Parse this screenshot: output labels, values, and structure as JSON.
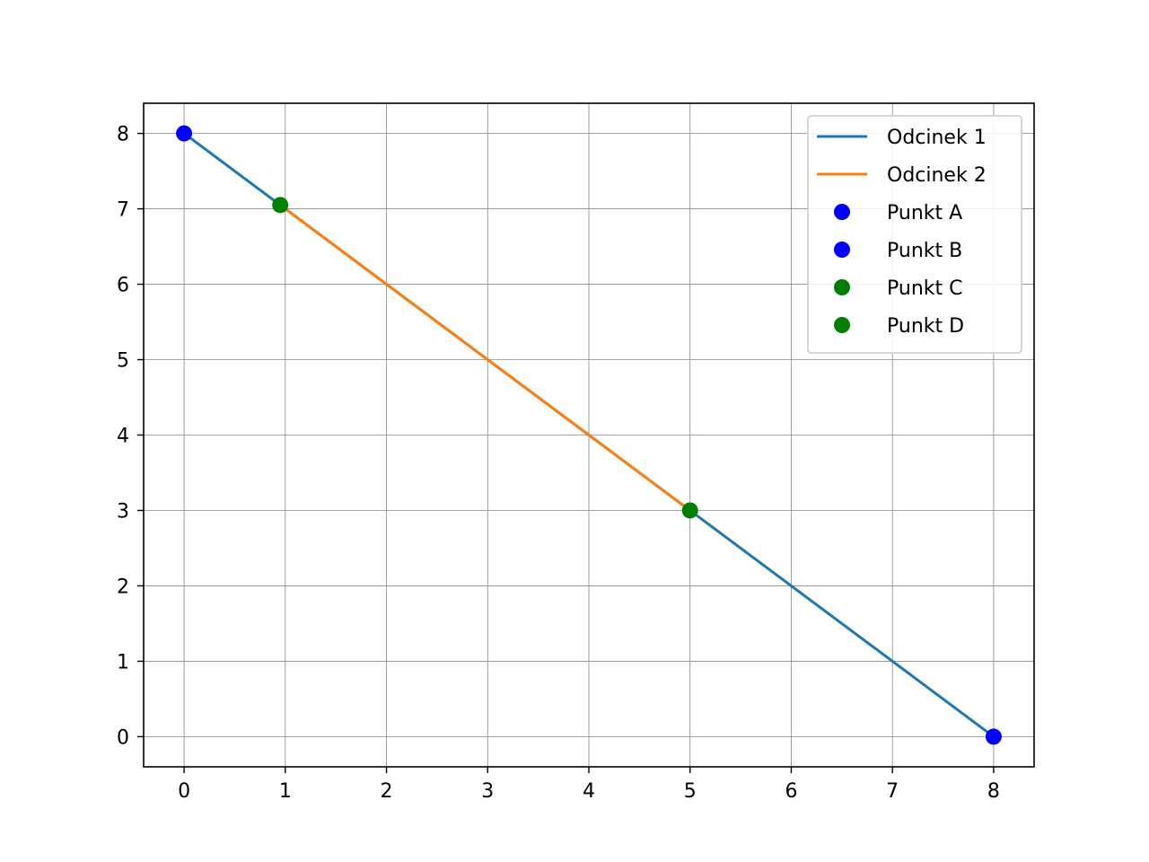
{
  "chart_data": {
    "type": "line",
    "title": "",
    "xlabel": "",
    "ylabel": "",
    "xlim": [
      -0.4,
      8.4
    ],
    "ylim": [
      -0.4,
      8.4
    ],
    "xticks": [
      0,
      1,
      2,
      3,
      4,
      5,
      6,
      7,
      8
    ],
    "yticks": [
      0,
      1,
      2,
      3,
      4,
      5,
      6,
      7,
      8
    ],
    "grid": true,
    "legend_position": "top-right",
    "series": [
      {
        "name": "Odcinek 1",
        "kind": "line",
        "color": "#1f77b4",
        "x": [
          0,
          8
        ],
        "y": [
          8,
          0
        ]
      },
      {
        "name": "Odcinek 2",
        "kind": "line",
        "color": "#ff7f0e",
        "x": [
          0.95,
          5
        ],
        "y": [
          7.05,
          3
        ]
      },
      {
        "name": "Punkt A",
        "kind": "point",
        "color": "#0000ff",
        "x": [
          0
        ],
        "y": [
          8
        ]
      },
      {
        "name": "Punkt B",
        "kind": "point",
        "color": "#0000ff",
        "x": [
          8
        ],
        "y": [
          0
        ]
      },
      {
        "name": "Punkt C",
        "kind": "point",
        "color": "#008000",
        "x": [
          0.95
        ],
        "y": [
          7.05
        ]
      },
      {
        "name": "Punkt D",
        "kind": "point",
        "color": "#008000",
        "x": [
          5
        ],
        "y": [
          3
        ]
      }
    ]
  }
}
